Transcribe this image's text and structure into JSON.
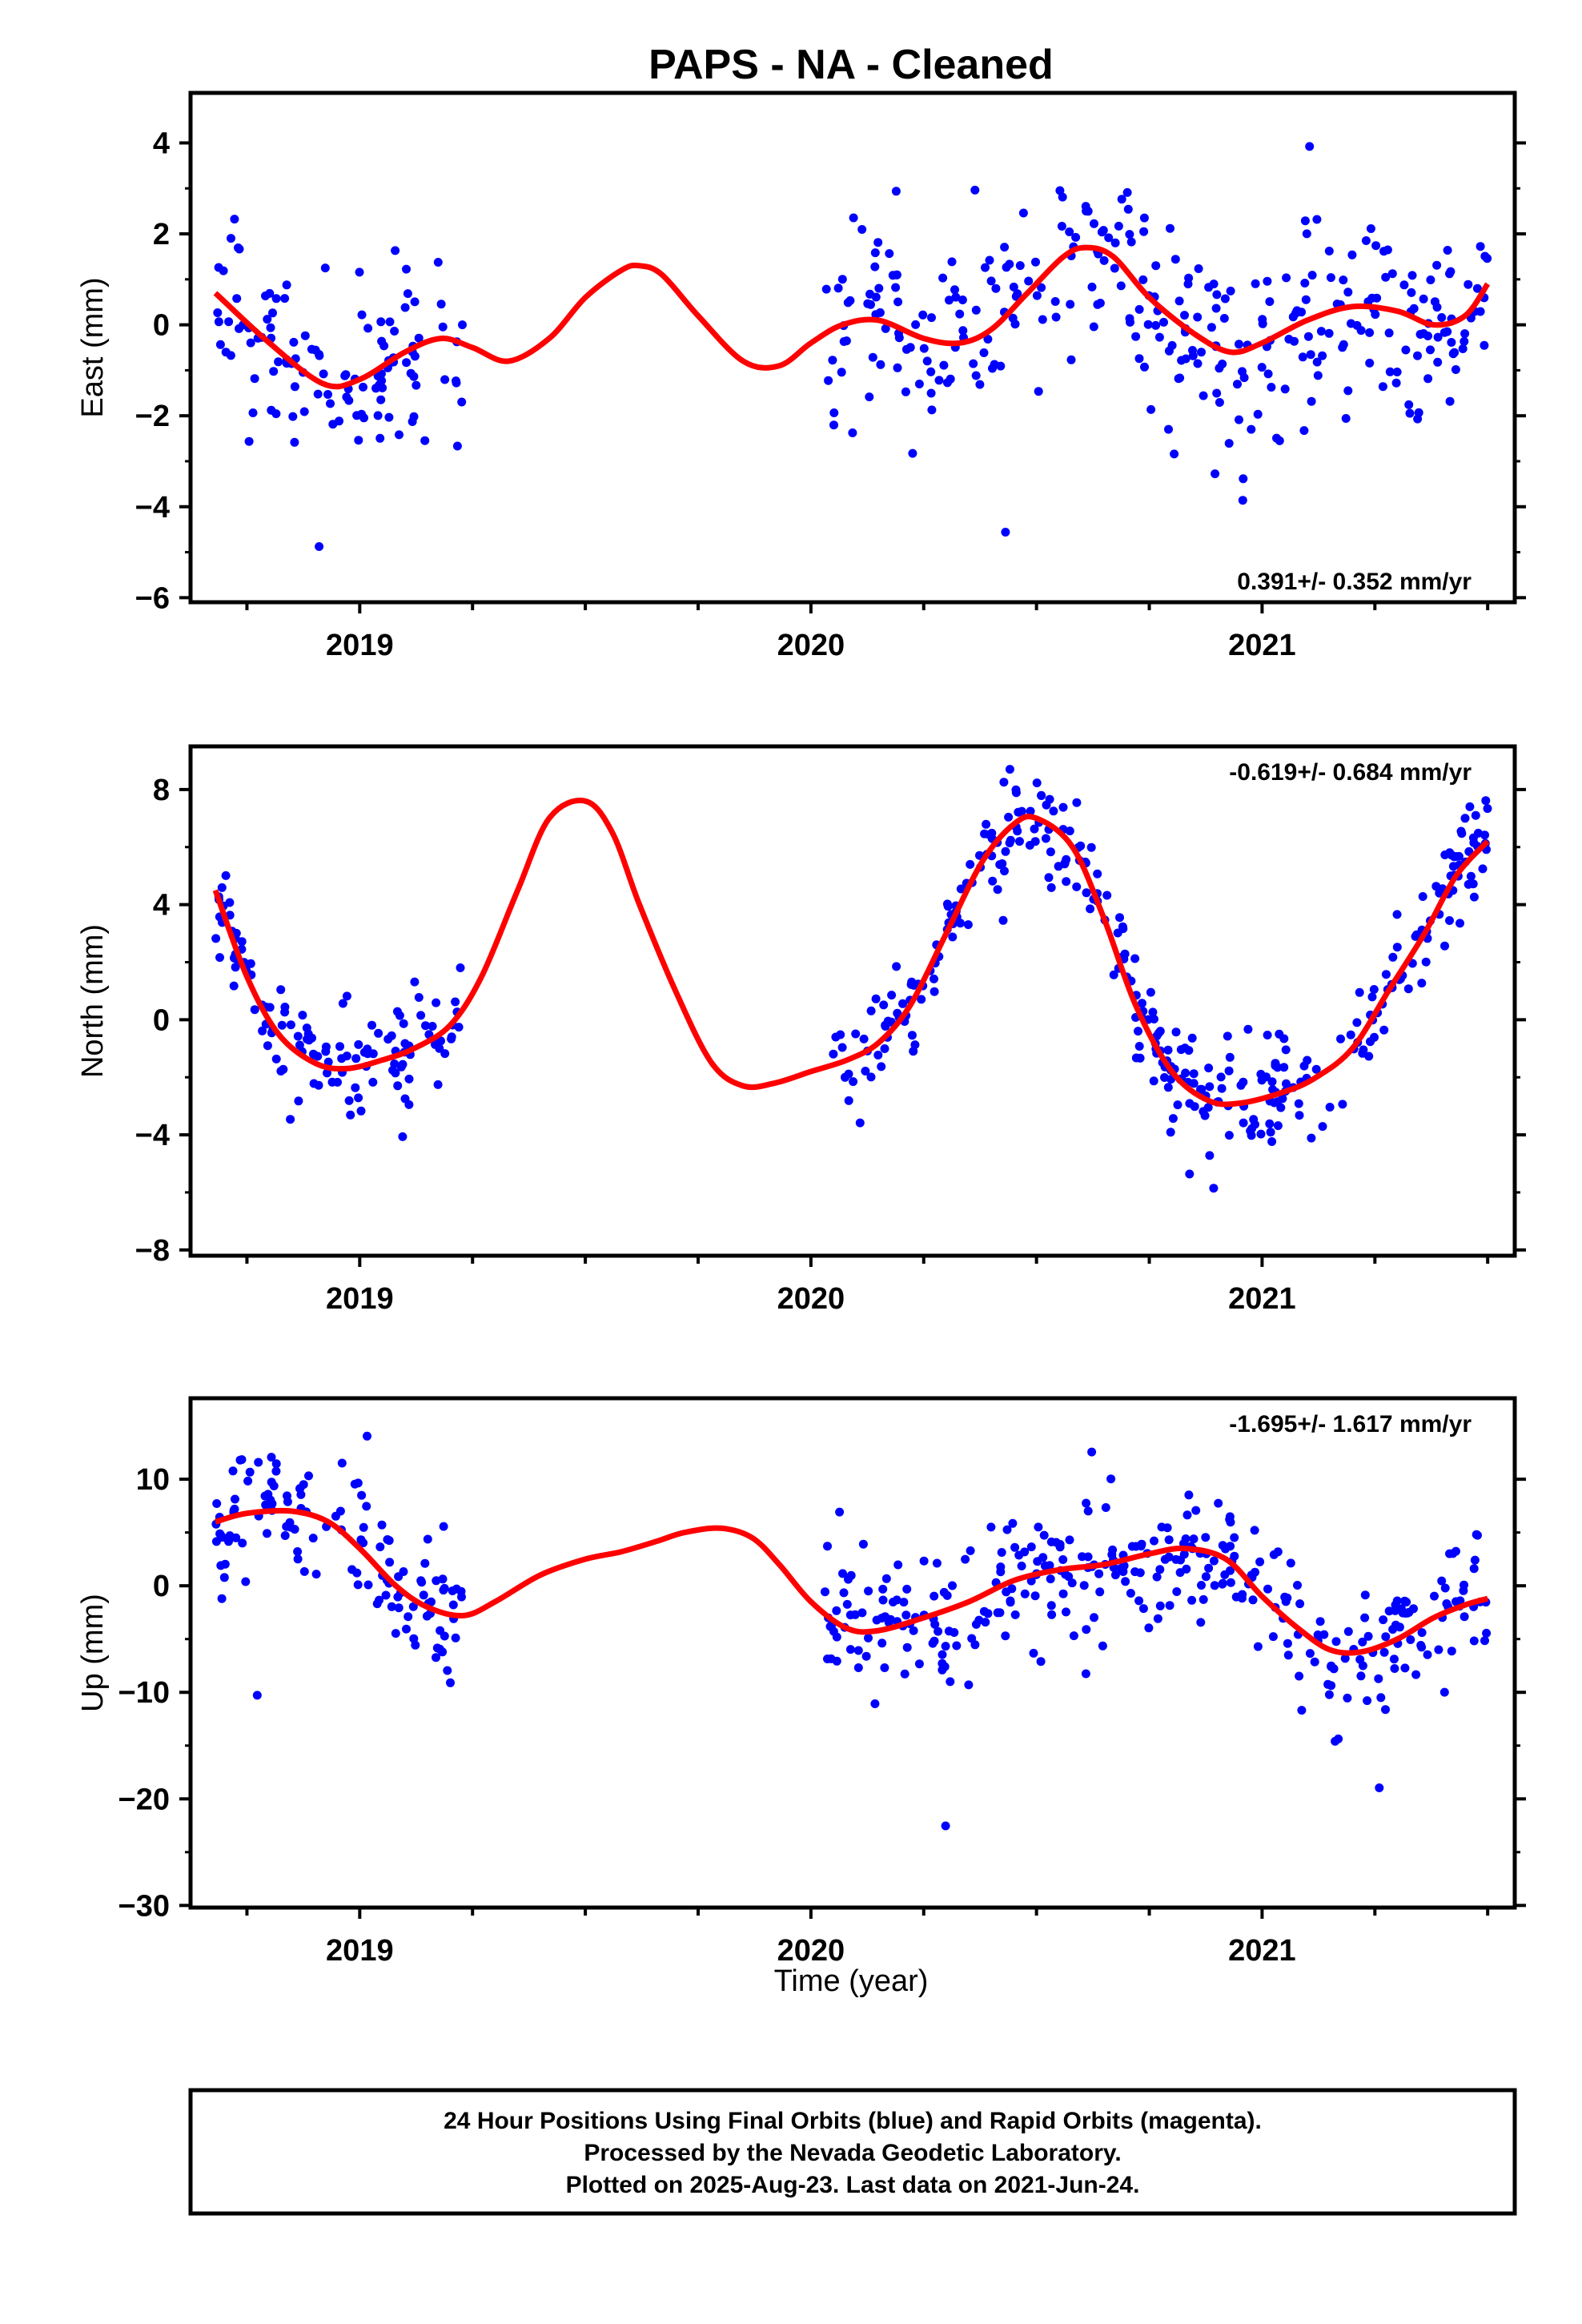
{
  "page": {
    "title": "PAPS  - NA - Cleaned",
    "xlabel": "Time (year)",
    "footer": [
      "24 Hour Positions Using Final Orbits (blue) and Rapid Orbits (magenta).",
      "Processed by the Nevada Geodetic Laboratory.",
      "Plotted on 2025-Aug-23. Last data on 2021-Jun-24."
    ]
  },
  "colors": {
    "points": "#0000ff",
    "fit": "#ff0000",
    "frame": "#000000"
  },
  "chart_data": [
    {
      "type": "scatter",
      "name": "east",
      "ylabel": "East (mm)",
      "xlim": [
        2018.625,
        2021.56
      ],
      "ylim": [
        -6.1,
        5.1
      ],
      "yticks": [
        -6,
        -4,
        -2,
        0,
        2,
        4
      ],
      "ytick_labels": [
        "−6",
        "−4",
        "−2",
        "0",
        "2",
        "4"
      ],
      "xticks": [
        2019,
        2020,
        2021
      ],
      "xtick_labels": [
        "2019",
        "2020",
        "2021"
      ],
      "annotation": "0.391+/- 0.352 mm/yr",
      "annotation_pos": "bottom-right",
      "fit_x": [
        2018.68,
        2018.8,
        2018.92,
        2019.0,
        2019.1,
        2019.18,
        2019.25,
        2019.33,
        2019.42,
        2019.5,
        2019.58,
        2019.62,
        2019.67,
        2019.75,
        2019.85,
        2019.93,
        2020.0,
        2020.07,
        2020.15,
        2020.25,
        2020.33,
        2020.4,
        2020.48,
        2020.56,
        2020.61,
        2020.67,
        2020.75,
        2020.85,
        2020.93,
        2021.0,
        2021.1,
        2021.2,
        2021.3,
        2021.38,
        2021.45,
        2021.5
      ],
      "fit_y": [
        0.7,
        -0.4,
        -1.3,
        -1.2,
        -0.6,
        -0.3,
        -0.5,
        -0.8,
        -0.3,
        0.6,
        1.2,
        1.3,
        1.1,
        0.2,
        -0.8,
        -0.9,
        -0.4,
        0.0,
        0.1,
        -0.3,
        -0.4,
        -0.1,
        0.7,
        1.5,
        1.7,
        1.5,
        0.6,
        -0.2,
        -0.6,
        -0.4,
        0.1,
        0.4,
        0.3,
        0.0,
        0.2,
        0.9
      ],
      "segments": [
        [
          2018.68,
          2019.23
        ],
        [
          2020.03,
          2021.5
        ]
      ],
      "point_sigma": 1.0,
      "point_count": 440
    },
    {
      "type": "scatter",
      "name": "north",
      "ylabel": "North (mm)",
      "xlim": [
        2018.625,
        2021.56
      ],
      "ylim": [
        -8.2,
        9.5
      ],
      "yticks": [
        -8,
        -4,
        0,
        4,
        8
      ],
      "ytick_labels": [
        "−8",
        "−4",
        "0",
        "4",
        "8"
      ],
      "xticks": [
        2019,
        2020,
        2021
      ],
      "xtick_labels": [
        "2019",
        "2020",
        "2021"
      ],
      "annotation": "-0.619+/- 0.684 mm/yr",
      "annotation_pos": "top-right",
      "fit_x": [
        2018.68,
        2018.75,
        2018.82,
        2018.9,
        2018.97,
        2019.05,
        2019.12,
        2019.2,
        2019.27,
        2019.35,
        2019.42,
        2019.5,
        2019.56,
        2019.62,
        2019.7,
        2019.78,
        2019.85,
        2019.92,
        2020.0,
        2020.08,
        2020.15,
        2020.22,
        2020.3,
        2020.38,
        2020.45,
        2020.5,
        2020.58,
        2020.65,
        2020.72,
        2020.8,
        2020.88,
        2020.95,
        2021.05,
        2021.12,
        2021.2,
        2021.28,
        2021.36,
        2021.43,
        2021.5
      ],
      "fit_y": [
        4.5,
        1.5,
        -0.5,
        -1.5,
        -1.7,
        -1.4,
        -1.0,
        -0.2,
        1.5,
        4.5,
        7.0,
        7.6,
        6.5,
        4.0,
        1.0,
        -1.5,
        -2.3,
        -2.2,
        -1.8,
        -1.4,
        -0.8,
        0.5,
        3.0,
        5.5,
        6.8,
        7.0,
        6.0,
        3.5,
        0.5,
        -1.8,
        -2.8,
        -2.9,
        -2.5,
        -2.0,
        -1.0,
        1.0,
        3.0,
        5.0,
        6.2
      ],
      "segments": [
        [
          2018.68,
          2019.23
        ],
        [
          2020.03,
          2021.5
        ]
      ],
      "point_sigma": 0.9,
      "point_count": 470
    },
    {
      "type": "scatter",
      "name": "up",
      "ylabel": "Up (mm)",
      "xlim": [
        2018.625,
        2021.56
      ],
      "ylim": [
        -30.2,
        17.6
      ],
      "yticks": [
        -30,
        -20,
        -10,
        0,
        10
      ],
      "ytick_labels": [
        "−30",
        "−20",
        "−10",
        "0",
        "10"
      ],
      "xticks": [
        2019,
        2020,
        2021
      ],
      "xtick_labels": [
        "2019",
        "2020",
        "2021"
      ],
      "annotation": "-1.695+/- 1.617 mm/yr",
      "annotation_pos": "top-right",
      "fit_x": [
        2018.68,
        2018.75,
        2018.85,
        2018.93,
        2019.0,
        2019.08,
        2019.15,
        2019.23,
        2019.3,
        2019.4,
        2019.5,
        2019.58,
        2019.66,
        2019.72,
        2019.8,
        2019.87,
        2019.93,
        2020.0,
        2020.08,
        2020.15,
        2020.25,
        2020.35,
        2020.45,
        2020.55,
        2020.65,
        2020.75,
        2020.83,
        2020.92,
        2021.0,
        2021.08,
        2021.15,
        2021.22,
        2021.3,
        2021.38,
        2021.45,
        2021.5
      ],
      "fit_y": [
        6.0,
        6.8,
        7.0,
        6.0,
        3.5,
        0.0,
        -2.0,
        -2.8,
        -1.5,
        1.0,
        2.5,
        3.2,
        4.2,
        5.0,
        5.4,
        4.5,
        2.0,
        -1.5,
        -4.0,
        -4.2,
        -3.0,
        -1.5,
        0.5,
        1.5,
        2.0,
        3.0,
        3.5,
        2.5,
        -1.0,
        -4.0,
        -6.0,
        -6.2,
        -5.0,
        -3.0,
        -1.8,
        -1.2
      ],
      "segments": [
        [
          2018.68,
          2019.23
        ],
        [
          2020.03,
          2021.5
        ]
      ],
      "point_sigma": 3.2,
      "point_count": 470
    }
  ]
}
